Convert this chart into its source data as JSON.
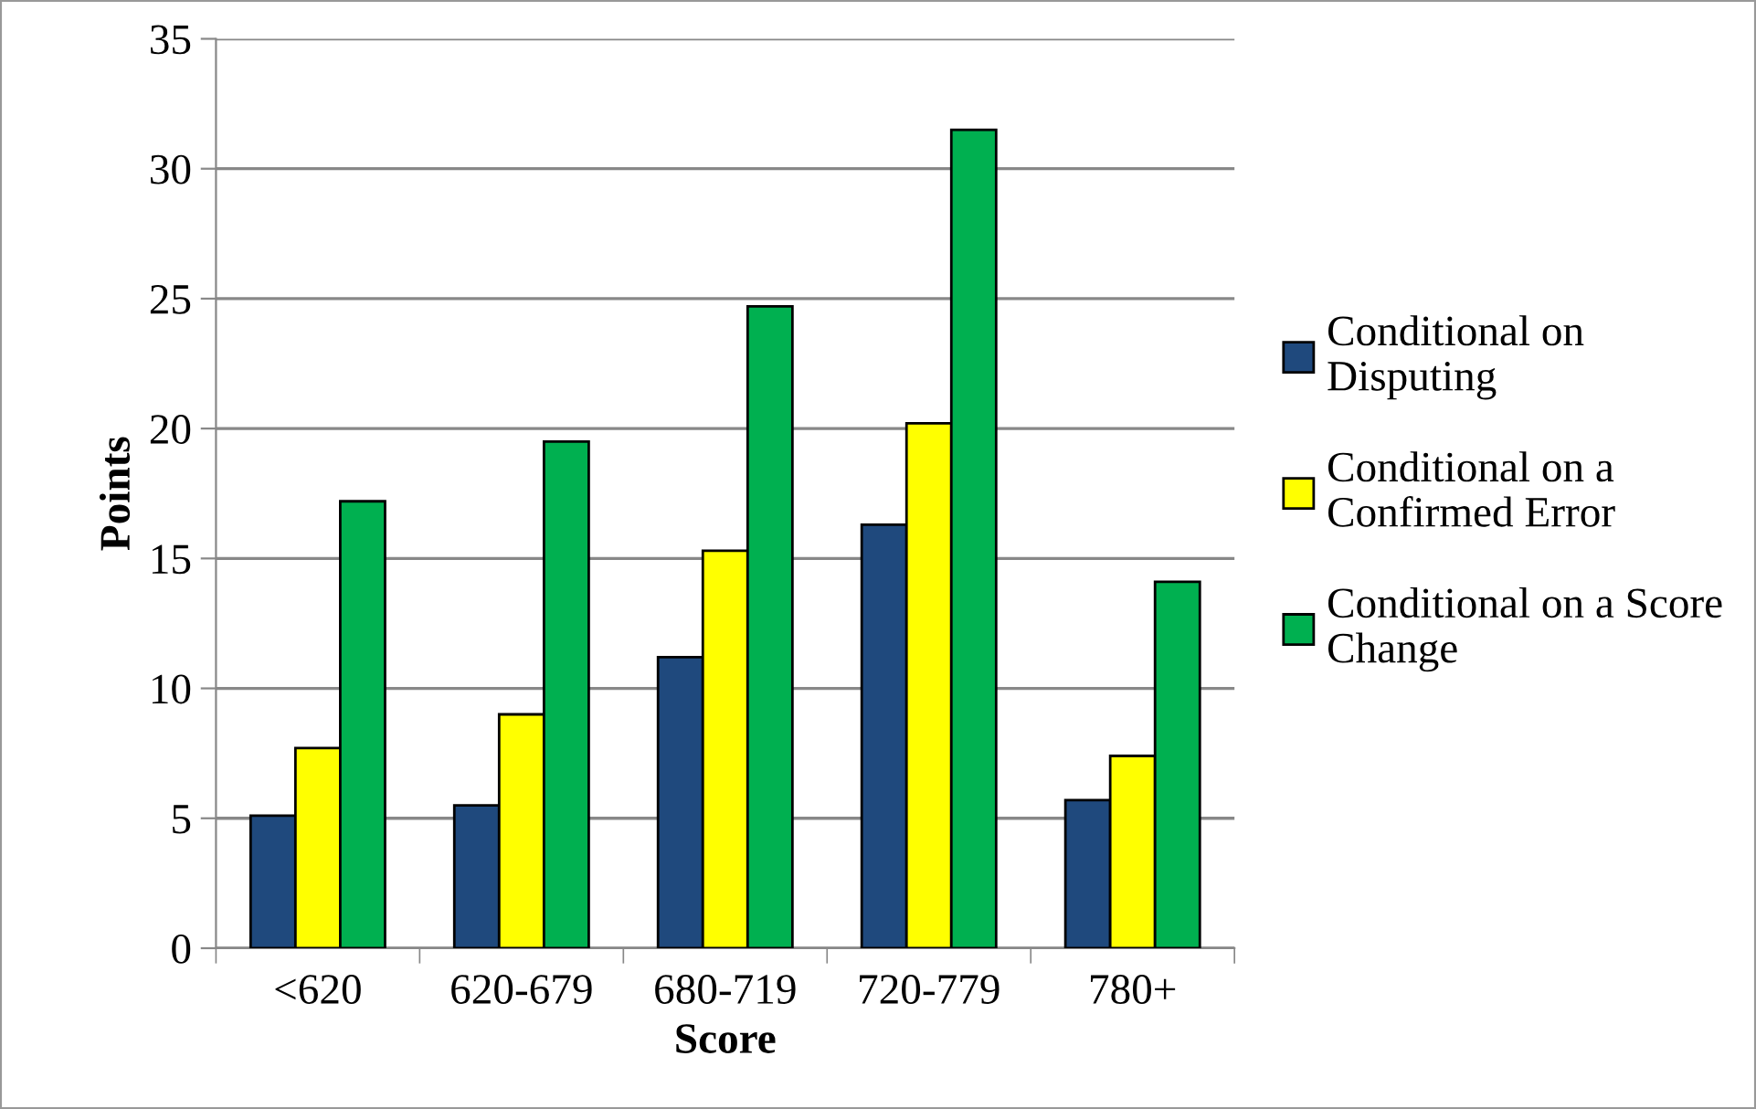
{
  "chart_data": {
    "type": "bar",
    "xlabel": "Score",
    "ylabel": "Points",
    "categories": [
      "<620",
      "620-679",
      "680-719",
      "720-779",
      "780+"
    ],
    "series": [
      {
        "name": "Conditional on Disputing",
        "color": "#1f497d",
        "values": [
          5.1,
          5.5,
          11.2,
          16.3,
          5.7
        ]
      },
      {
        "name": "Conditional on a Confirmed Error",
        "color": "#ffff00",
        "values": [
          7.7,
          9.0,
          15.3,
          20.2,
          7.4
        ]
      },
      {
        "name": "Conditional on a Score Change",
        "color": "#00b050",
        "values": [
          17.2,
          19.5,
          24.7,
          31.5,
          14.1
        ]
      }
    ],
    "ylim": [
      0,
      35
    ],
    "yticks": [
      0,
      5,
      10,
      15,
      20,
      25,
      30,
      35
    ],
    "grid": "y",
    "legend": "right"
  }
}
